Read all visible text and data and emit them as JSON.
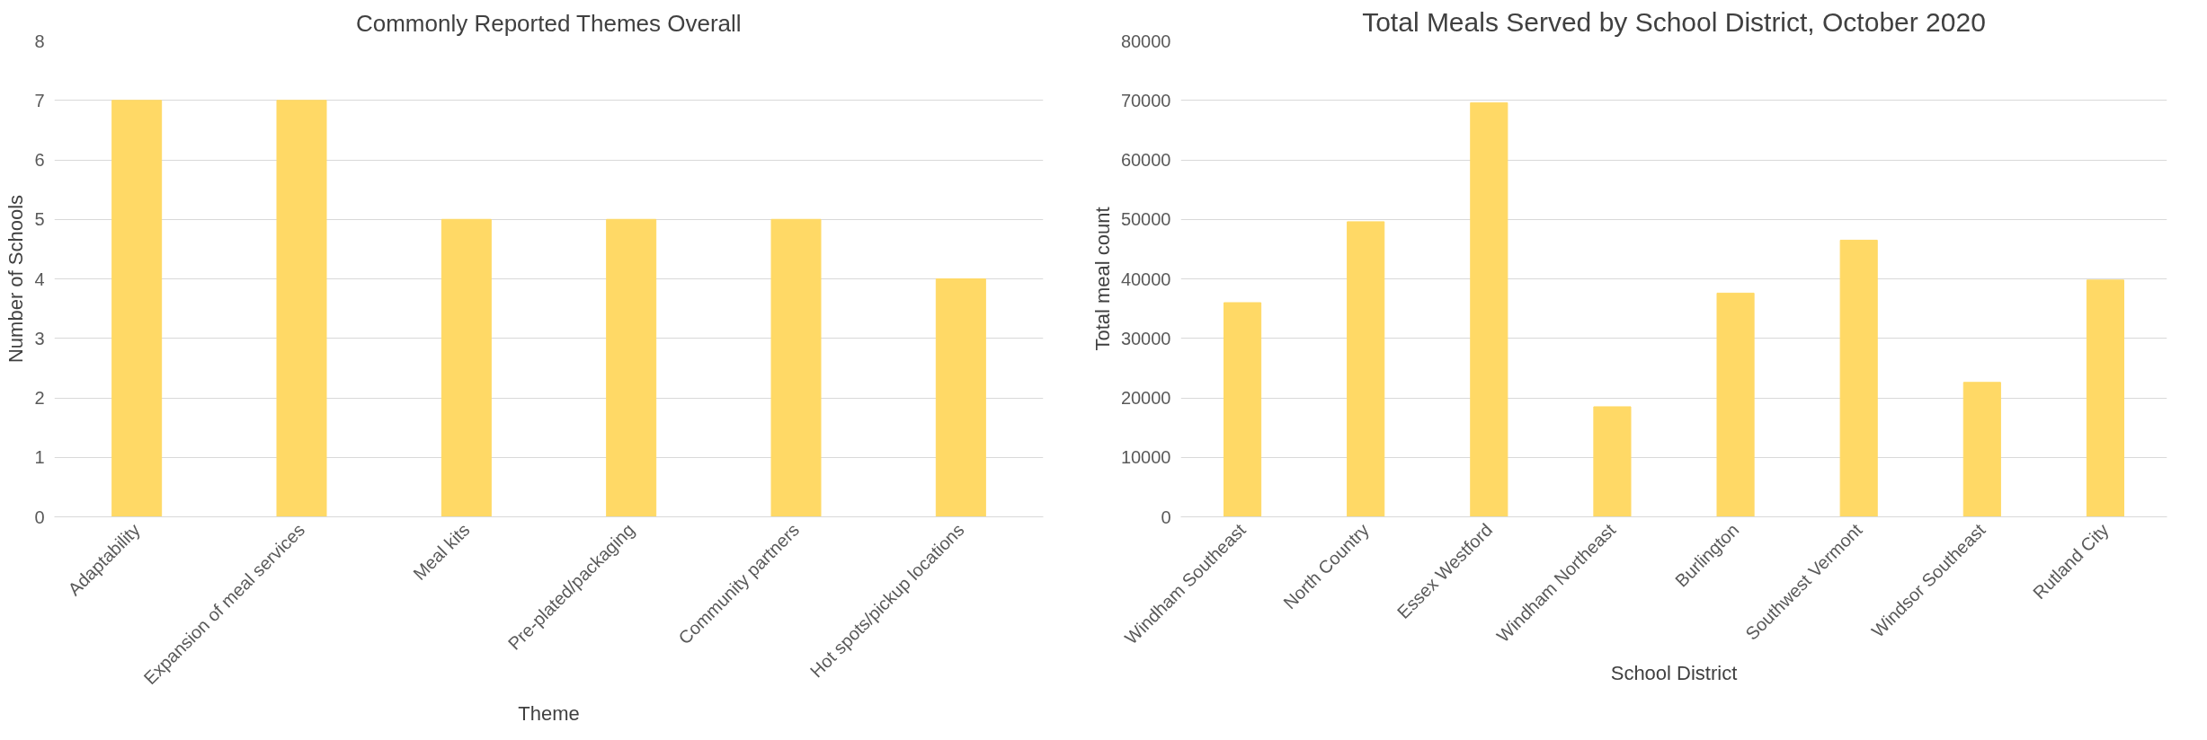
{
  "chart_data": [
    {
      "type": "bar",
      "title": "Commonly Reported Themes Overall",
      "xlabel": "Theme",
      "ylabel": "Number of Schools",
      "categories": [
        "Adaptability",
        "Expansion of meal services",
        "Meal kits",
        "Pre-plated/packaging",
        "Community partners",
        "Hot spots/pickup locations"
      ],
      "values": [
        7,
        7,
        5,
        5,
        5,
        4
      ],
      "color": "#ffd966",
      "ylim": [
        0,
        8
      ],
      "yticks": [
        0,
        1,
        2,
        3,
        4,
        5,
        6,
        7,
        8
      ],
      "grid": "y"
    },
    {
      "type": "bar",
      "title": "Total Meals Served by School District, October 2020",
      "xlabel": "School District",
      "ylabel": "Total meal count",
      "categories": [
        "Windham Southeast",
        "North Country",
        "Essex Westford",
        "Windham Northeast",
        "Burlington",
        "Southwest Vermont",
        "Windsor Southeast",
        "Rutland City"
      ],
      "values": [
        36000,
        49600,
        69600,
        18500,
        37600,
        46500,
        22600,
        39800
      ],
      "color": "#ffd966",
      "ylim": [
        0,
        80000
      ],
      "yticks": [
        0,
        10000,
        20000,
        30000,
        40000,
        50000,
        60000,
        70000,
        80000
      ],
      "grid": "y"
    }
  ]
}
